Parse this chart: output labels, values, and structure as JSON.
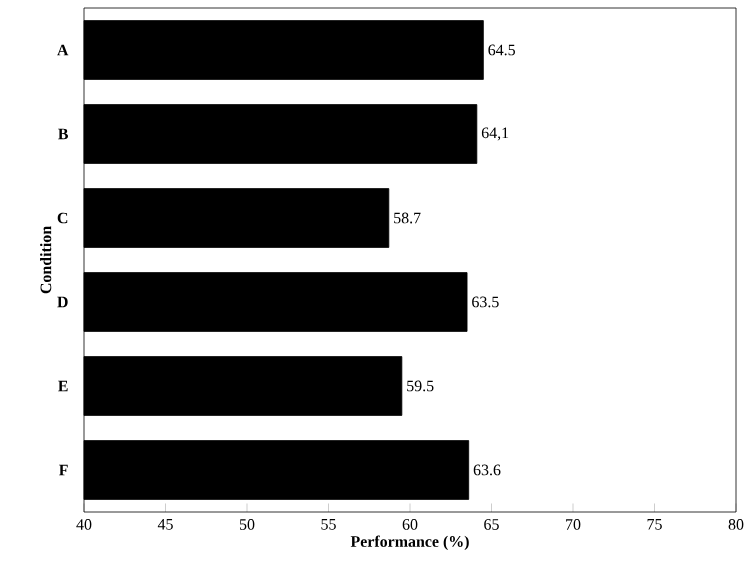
{
  "chart_data": {
    "type": "bar",
    "orientation": "horizontal",
    "xlabel": "Performance (%)",
    "ylabel": "Condition",
    "categories": [
      "A",
      "B",
      "C",
      "D",
      "E",
      "F"
    ],
    "values": [
      64.5,
      64.1,
      58.7,
      63.5,
      59.5,
      63.6
    ],
    "value_labels": [
      "64.5",
      "64,1",
      "58.7",
      "63.5",
      "59.5",
      "63.6"
    ],
    "color": "#000000",
    "xlim": [
      40,
      80
    ],
    "xticks": [
      40,
      45,
      50,
      55,
      60,
      65,
      70,
      75,
      80
    ],
    "grid": false
  }
}
